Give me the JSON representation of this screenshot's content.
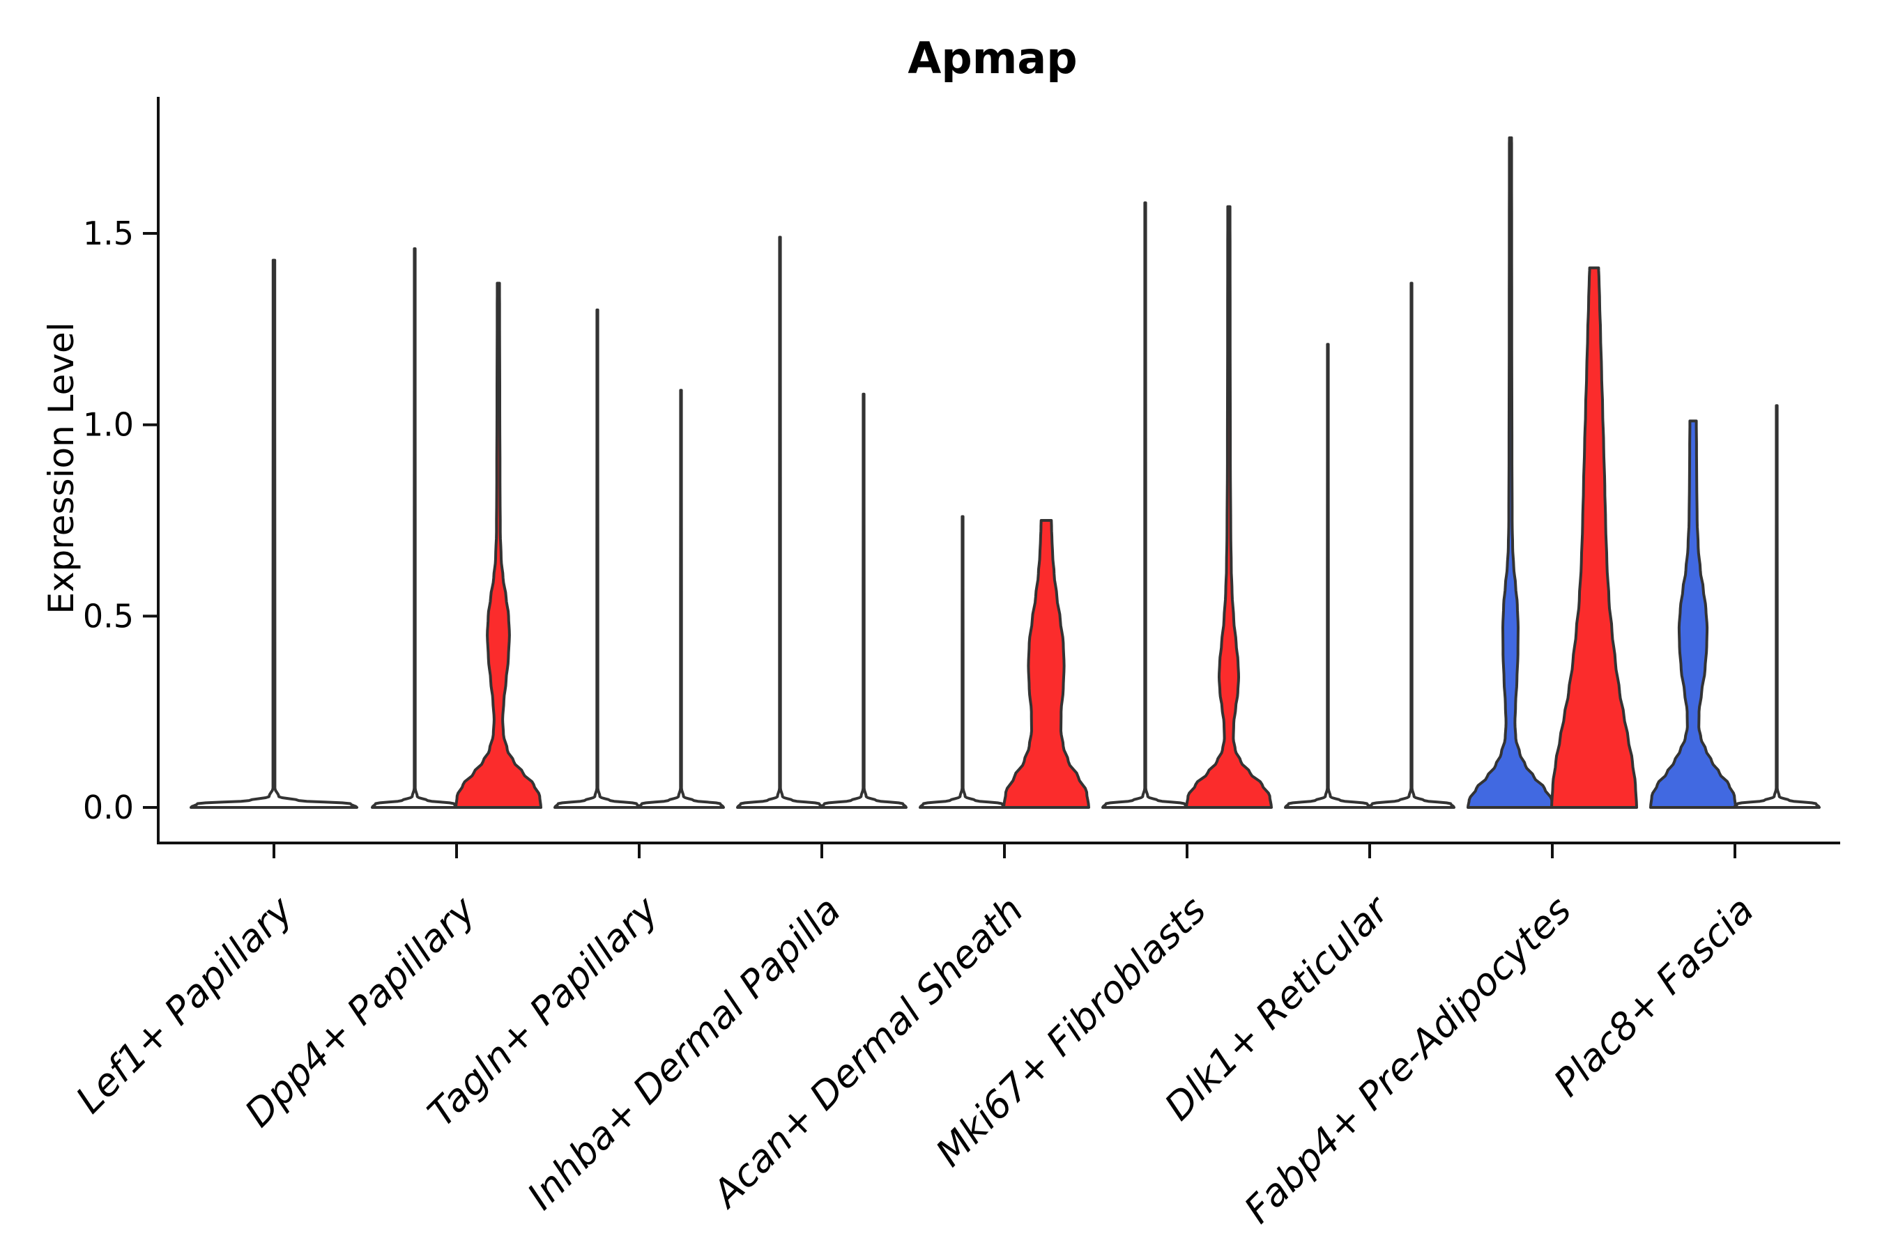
{
  "chart_data": {
    "type": "violin",
    "title": "Apmap",
    "ylabel": "Expression Level",
    "xlabel": "",
    "ylim": [
      -0.09,
      1.86
    ],
    "yticks": [
      0.0,
      0.5,
      1.0,
      1.5
    ],
    "ytick_labels": [
      "0.0",
      "0.5",
      "1.0",
      "1.5"
    ],
    "grid": false,
    "legend_position": "none",
    "colors": {
      "left_group_fill": "#4169E1",
      "right_group_fill": "#FB2C2C",
      "degenerate_violin_fill": "#FFFFFF",
      "violin_outline": "#333333",
      "axis": "#111111",
      "text": "#000000",
      "background": "#FFFFFF"
    },
    "categories": [
      "Lef1+ Papillary",
      "Dpp4+ Papillary",
      "Tagln+ Papillary",
      "Inhba+ Dermal Papilla",
      "Acan+ Dermal Sheath",
      "Mki67+ Fibroblasts",
      "Dlk1+ Reticular",
      "Fabp4+ Pre-Adipocytes",
      "Plac8+ Fascia"
    ],
    "violins": [
      {
        "category": "Lef1+ Papillary",
        "side": "center",
        "shape": "spike",
        "max": 1.43,
        "fill": "#FFFFFF"
      },
      {
        "category": "Dpp4+ Papillary",
        "side": "left",
        "shape": "spike",
        "max": 1.46,
        "fill": "#FFFFFF"
      },
      {
        "category": "Dpp4+ Papillary",
        "side": "right",
        "shape": "density",
        "max": 1.37,
        "fill": "#FB2C2C",
        "profile": [
          [
            0,
            1.0
          ],
          [
            0.03,
            0.97
          ],
          [
            0.06,
            0.83
          ],
          [
            0.09,
            0.58
          ],
          [
            0.12,
            0.36
          ],
          [
            0.15,
            0.21
          ],
          [
            0.19,
            0.12
          ],
          [
            0.23,
            0.1
          ],
          [
            0.28,
            0.13
          ],
          [
            0.33,
            0.18
          ],
          [
            0.39,
            0.235
          ],
          [
            0.45,
            0.26
          ],
          [
            0.5,
            0.24
          ],
          [
            0.55,
            0.18
          ],
          [
            0.6,
            0.11
          ],
          [
            0.65,
            0.065
          ],
          [
            0.72,
            0.045
          ],
          [
            0.85,
            0.038
          ],
          [
            1.1,
            0.032
          ],
          [
            1.3,
            0.028
          ],
          [
            1.37,
            0.026
          ]
        ]
      },
      {
        "category": "Tagln+ Papillary",
        "side": "left",
        "shape": "spike",
        "max": 1.3,
        "fill": "#FFFFFF"
      },
      {
        "category": "Tagln+ Papillary",
        "side": "right",
        "shape": "spike",
        "max": 1.09,
        "fill": "#FFFFFF"
      },
      {
        "category": "Inhba+ Dermal Papilla",
        "side": "left",
        "shape": "spike",
        "max": 1.49,
        "fill": "#FFFFFF"
      },
      {
        "category": "Inhba+ Dermal Papilla",
        "side": "right",
        "shape": "spike",
        "max": 1.08,
        "fill": "#FFFFFF"
      },
      {
        "category": "Acan+ Dermal Sheath",
        "side": "left",
        "shape": "spike",
        "max": 0.76,
        "fill": "#FFFFFF"
      },
      {
        "category": "Acan+ Dermal Sheath",
        "side": "right",
        "shape": "density",
        "max": 0.75,
        "fill": "#FB2C2C",
        "profile": [
          [
            0,
            1.0
          ],
          [
            0.04,
            0.95
          ],
          [
            0.08,
            0.75
          ],
          [
            0.12,
            0.52
          ],
          [
            0.16,
            0.4
          ],
          [
            0.2,
            0.345
          ],
          [
            0.25,
            0.35
          ],
          [
            0.31,
            0.4
          ],
          [
            0.37,
            0.42
          ],
          [
            0.43,
            0.4
          ],
          [
            0.49,
            0.33
          ],
          [
            0.55,
            0.25
          ],
          [
            0.61,
            0.185
          ],
          [
            0.66,
            0.15
          ],
          [
            0.7,
            0.135
          ],
          [
            0.73,
            0.125
          ],
          [
            0.75,
            0.12
          ]
        ]
      },
      {
        "category": "Mki67+ Fibroblasts",
        "side": "left",
        "shape": "spike",
        "max": 1.58,
        "fill": "#FFFFFF"
      },
      {
        "category": "Mki67+ Fibroblasts",
        "side": "right",
        "shape": "density",
        "max": 1.57,
        "fill": "#FB2C2C",
        "profile": [
          [
            0,
            1.0
          ],
          [
            0.03,
            0.96
          ],
          [
            0.06,
            0.78
          ],
          [
            0.09,
            0.5
          ],
          [
            0.12,
            0.28
          ],
          [
            0.15,
            0.15
          ],
          [
            0.18,
            0.105
          ],
          [
            0.22,
            0.115
          ],
          [
            0.26,
            0.16
          ],
          [
            0.3,
            0.21
          ],
          [
            0.34,
            0.23
          ],
          [
            0.38,
            0.215
          ],
          [
            0.43,
            0.17
          ],
          [
            0.49,
            0.115
          ],
          [
            0.56,
            0.075
          ],
          [
            0.63,
            0.055
          ],
          [
            0.72,
            0.045
          ],
          [
            0.9,
            0.035
          ],
          [
            1.2,
            0.03
          ],
          [
            1.45,
            0.028
          ],
          [
            1.57,
            0.026
          ]
        ]
      },
      {
        "category": "Dlk1+ Reticular",
        "side": "left",
        "shape": "spike",
        "max": 1.21,
        "fill": "#FFFFFF"
      },
      {
        "category": "Dlk1+ Reticular",
        "side": "right",
        "shape": "spike",
        "max": 1.37,
        "fill": "#FFFFFF"
      },
      {
        "category": "Fabp4+ Pre-Adipocytes",
        "side": "left",
        "shape": "density",
        "max": 1.75,
        "fill": "#4169E1",
        "profile": [
          [
            0,
            1.0
          ],
          [
            0.02,
            0.97
          ],
          [
            0.05,
            0.8
          ],
          [
            0.08,
            0.55
          ],
          [
            0.11,
            0.35
          ],
          [
            0.14,
            0.22
          ],
          [
            0.18,
            0.125
          ],
          [
            0.22,
            0.105
          ],
          [
            0.27,
            0.12
          ],
          [
            0.33,
            0.15
          ],
          [
            0.4,
            0.175
          ],
          [
            0.47,
            0.18
          ],
          [
            0.53,
            0.16
          ],
          [
            0.58,
            0.12
          ],
          [
            0.63,
            0.075
          ],
          [
            0.68,
            0.05
          ],
          [
            0.75,
            0.04
          ],
          [
            0.9,
            0.035
          ],
          [
            1.2,
            0.03
          ],
          [
            1.5,
            0.028
          ],
          [
            1.72,
            0.026
          ],
          [
            1.75,
            0.025
          ]
        ]
      },
      {
        "category": "Fabp4+ Pre-Adipocytes",
        "side": "right",
        "shape": "density",
        "max": 1.41,
        "fill": "#FB2C2C",
        "profile": [
          [
            0,
            1.0
          ],
          [
            0.06,
            0.97
          ],
          [
            0.12,
            0.9
          ],
          [
            0.18,
            0.8
          ],
          [
            0.24,
            0.7
          ],
          [
            0.3,
            0.6
          ],
          [
            0.38,
            0.5
          ],
          [
            0.46,
            0.42
          ],
          [
            0.54,
            0.35
          ],
          [
            0.64,
            0.3
          ],
          [
            0.74,
            0.27
          ],
          [
            0.84,
            0.25
          ],
          [
            0.94,
            0.225
          ],
          [
            1.04,
            0.2
          ],
          [
            1.14,
            0.175
          ],
          [
            1.24,
            0.15
          ],
          [
            1.32,
            0.13
          ],
          [
            1.38,
            0.115
          ],
          [
            1.41,
            0.105
          ]
        ]
      },
      {
        "category": "Plac8+ Fascia",
        "side": "left",
        "shape": "density",
        "max": 1.01,
        "fill": "#4169E1",
        "profile": [
          [
            0,
            1.0
          ],
          [
            0.03,
            0.97
          ],
          [
            0.06,
            0.84
          ],
          [
            0.09,
            0.62
          ],
          [
            0.12,
            0.44
          ],
          [
            0.15,
            0.3
          ],
          [
            0.18,
            0.185
          ],
          [
            0.21,
            0.135
          ],
          [
            0.25,
            0.14
          ],
          [
            0.3,
            0.2
          ],
          [
            0.36,
            0.28
          ],
          [
            0.42,
            0.32
          ],
          [
            0.47,
            0.33
          ],
          [
            0.52,
            0.3
          ],
          [
            0.57,
            0.24
          ],
          [
            0.62,
            0.17
          ],
          [
            0.68,
            0.12
          ],
          [
            0.75,
            0.095
          ],
          [
            0.85,
            0.085
          ],
          [
            0.95,
            0.08
          ],
          [
            1.01,
            0.075
          ]
        ]
      },
      {
        "category": "Plac8+ Fascia",
        "side": "right",
        "shape": "spike",
        "max": 1.05,
        "fill": "#FFFFFF"
      }
    ]
  }
}
